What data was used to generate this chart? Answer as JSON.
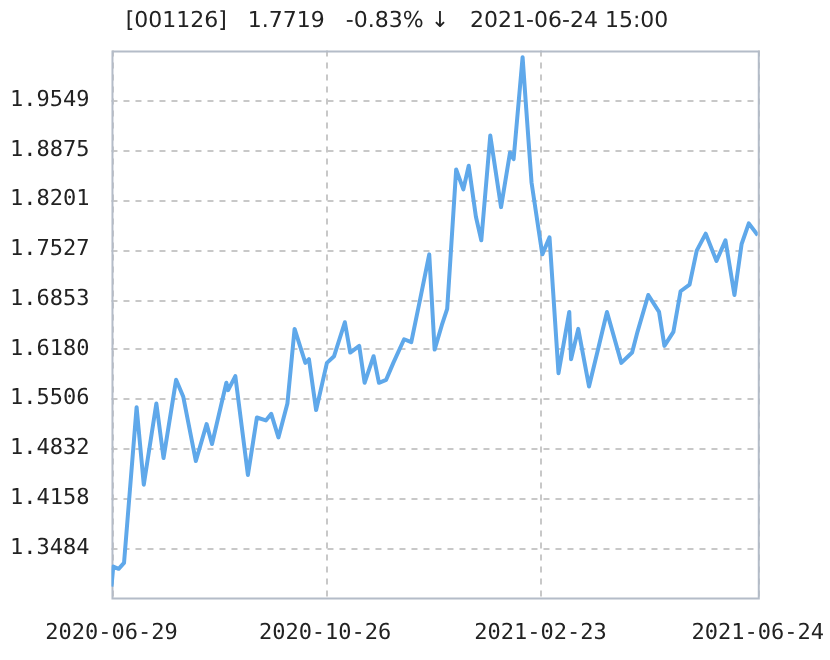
{
  "chart_data": {
    "type": "line",
    "title": "[001126]   1.7719   -0.83% ↓   2021-06-24 15:00",
    "x": [
      "2020-06-29",
      "2020-06-30",
      "2020-07-03",
      "2020-07-06",
      "2020-07-13",
      "2020-07-17",
      "2020-07-24",
      "2020-07-28",
      "2020-08-04",
      "2020-08-08",
      "2020-08-15",
      "2020-08-21",
      "2020-08-24",
      "2020-09-01",
      "2020-09-02",
      "2020-09-06",
      "2020-09-13",
      "2020-09-18",
      "2020-09-23",
      "2020-09-26",
      "2020-09-30",
      "2020-10-05",
      "2020-10-09",
      "2020-10-15",
      "2020-10-17",
      "2020-10-21",
      "2020-10-27",
      "2020-10-31",
      "2020-11-06",
      "2020-11-09",
      "2020-11-14",
      "2020-11-17",
      "2020-11-22",
      "2020-11-25",
      "2020-11-29",
      "2020-12-03",
      "2020-12-09",
      "2020-12-13",
      "2020-12-18",
      "2020-12-23",
      "2020-12-26",
      "2020-12-30",
      "2021-01-02",
      "2021-01-07",
      "2021-01-11",
      "2021-01-14",
      "2021-01-18",
      "2021-01-21",
      "2021-01-26",
      "2021-02-01",
      "2021-02-06",
      "2021-02-08",
      "2021-02-13",
      "2021-02-15",
      "2021-02-18",
      "2021-02-22",
      "2021-02-24",
      "2021-02-28",
      "2021-03-02",
      "2021-03-05",
      "2021-03-11",
      "2021-03-12",
      "2021-03-16",
      "2021-03-22",
      "2021-03-27",
      "2021-04-01",
      "2021-04-09",
      "2021-04-15",
      "2021-04-18",
      "2021-04-24",
      "2021-04-30",
      "2021-05-03",
      "2021-05-08",
      "2021-05-12",
      "2021-05-17",
      "2021-05-21",
      "2021-05-26",
      "2021-06-01",
      "2021-06-06",
      "2021-06-11",
      "2021-06-15",
      "2021-06-19",
      "2021-06-24"
    ],
    "series": [
      {
        "color": "#5fa8ea",
        "values": [
          1.296,
          1.323,
          1.32,
          1.328,
          1.539,
          1.434,
          1.544,
          1.47,
          1.576,
          1.553,
          1.466,
          1.516,
          1.489,
          1.572,
          1.562,
          1.581,
          1.447,
          1.525,
          1.521,
          1.53,
          1.498,
          1.544,
          1.645,
          1.599,
          1.604,
          1.535,
          1.599,
          1.608,
          1.654,
          1.613,
          1.622,
          1.572,
          1.608,
          1.572,
          1.576,
          1.599,
          1.631,
          1.627,
          1.686,
          1.746,
          1.617,
          1.65,
          1.672,
          1.861,
          1.834,
          1.866,
          1.797,
          1.765,
          1.907,
          1.81,
          1.884,
          1.875,
          2.013,
          1.944,
          1.843,
          1.778,
          1.746,
          1.769,
          1.696,
          1.585,
          1.668,
          1.604,
          1.645,
          1.567,
          1.617,
          1.668,
          1.599,
          1.613,
          1.641,
          1.691,
          1.668,
          1.622,
          1.641,
          1.696,
          1.705,
          1.751,
          1.774,
          1.737,
          1.765,
          1.691,
          1.76,
          1.788,
          1.7719
        ]
      }
    ],
    "xlim": [
      "2020-06-29",
      "2021-06-24"
    ],
    "xticks": [
      {
        "value": "2020-06-29",
        "label": "2020-06-29"
      },
      {
        "value": "2020-10-26",
        "label": "2020-10-26"
      },
      {
        "value": "2021-02-23",
        "label": "2021-02-23"
      },
      {
        "value": "2021-06-24",
        "label": "2021-06-24"
      }
    ],
    "ylim": [
      1.281,
      2.0223
    ],
    "yticks": [
      1.3484,
      1.4158,
      1.4832,
      1.5506,
      {
        "value": 1.618,
        "label": "1.6180"
      },
      1.6853,
      1.7527,
      1.8201,
      1.8875,
      1.9549
    ],
    "grid": true,
    "marker": "none",
    "line_style": "solid",
    "legend": false
  }
}
